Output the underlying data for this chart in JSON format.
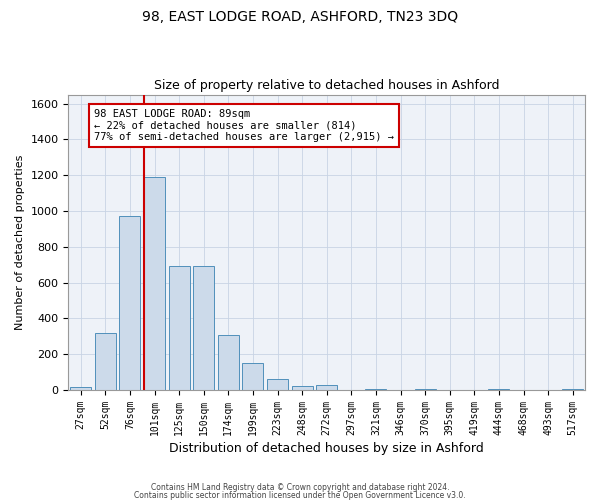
{
  "title1": "98, EAST LODGE ROAD, ASHFORD, TN23 3DQ",
  "title2": "Size of property relative to detached houses in Ashford",
  "xlabel": "Distribution of detached houses by size in Ashford",
  "ylabel": "Number of detached properties",
  "categories": [
    "27sqm",
    "52sqm",
    "76sqm",
    "101sqm",
    "125sqm",
    "150sqm",
    "174sqm",
    "199sqm",
    "223sqm",
    "248sqm",
    "272sqm",
    "297sqm",
    "321sqm",
    "346sqm",
    "370sqm",
    "395sqm",
    "419sqm",
    "444sqm",
    "468sqm",
    "493sqm",
    "517sqm"
  ],
  "values": [
    20,
    320,
    970,
    1190,
    690,
    690,
    305,
    150,
    60,
    25,
    30,
    0,
    5,
    0,
    5,
    0,
    0,
    5,
    0,
    0,
    5
  ],
  "bar_color": "#ccdaea",
  "bar_edge_color": "#5090bb",
  "vline_color": "#cc0000",
  "annotation_text": "98 EAST LODGE ROAD: 89sqm\n← 22% of detached houses are smaller (814)\n77% of semi-detached houses are larger (2,915) →",
  "annotation_box_color": "#ffffff",
  "annotation_box_edge": "#cc0000",
  "ylim": [
    0,
    1650
  ],
  "yticks": [
    0,
    200,
    400,
    600,
    800,
    1000,
    1200,
    1400,
    1600
  ],
  "footer1": "Contains HM Land Registry data © Crown copyright and database right 2024.",
  "footer2": "Contains public sector information licensed under the Open Government Licence v3.0.",
  "grid_color": "#c8d4e4",
  "bg_color": "#eef2f8",
  "title1_fontsize": 10,
  "title2_fontsize": 9
}
